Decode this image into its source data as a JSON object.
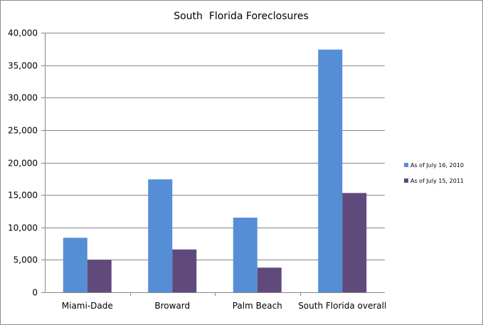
{
  "chart_data": {
    "type": "bar",
    "title": "South  Florida Foreclosures",
    "xlabel": "",
    "ylabel": "",
    "categories": [
      "Miami-Dade",
      "Broward",
      "Palm Beach",
      "South Florida overall"
    ],
    "series": [
      {
        "name": "As of July 16, 2010",
        "color": "#558ed5",
        "values": [
          8400,
          17400,
          11500,
          37400
        ]
      },
      {
        "name": "As of July 15, 2011",
        "color": "#604a7b",
        "values": [
          5000,
          6600,
          3800,
          15300
        ]
      }
    ],
    "ylim": [
      0,
      40000
    ],
    "yticks": [
      0,
      5000,
      10000,
      15000,
      20000,
      25000,
      30000,
      35000,
      40000
    ],
    "ytick_labels": [
      "0",
      "5,000",
      "10,000",
      "15,000",
      "20,000",
      "25,000",
      "30,000",
      "35,000",
      "40,000"
    ],
    "grid": true,
    "legend_position": "right",
    "colors": {
      "gridline": "#868686",
      "axis": "#868686"
    }
  }
}
